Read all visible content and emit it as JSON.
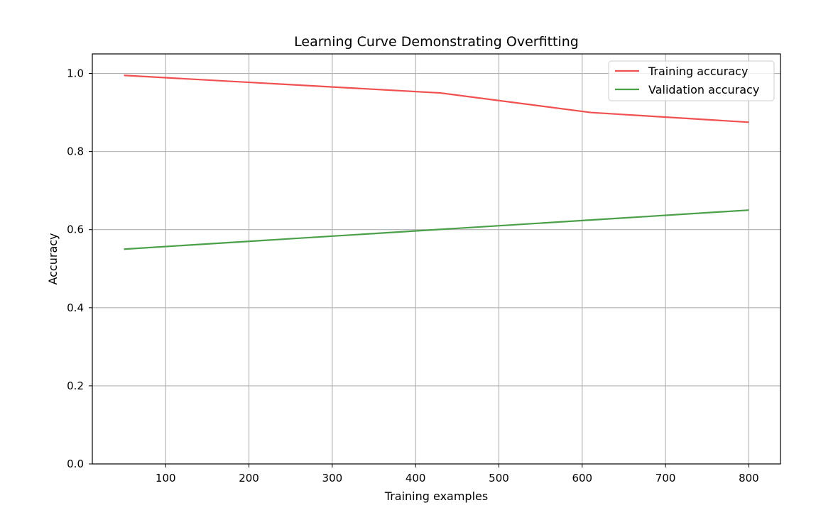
{
  "chart_data": {
    "type": "line",
    "title": "Learning Curve Demonstrating Overfitting",
    "xlabel": "Training examples",
    "ylabel": "Accuracy",
    "xlim": [
      12,
      838
    ],
    "ylim": [
      0.0,
      1.05
    ],
    "xticks": [
      100,
      200,
      300,
      400,
      500,
      600,
      700,
      800
    ],
    "xtick_labels": [
      "100",
      "200",
      "300",
      "400",
      "500",
      "600",
      "700",
      "800"
    ],
    "yticks": [
      0.0,
      0.2,
      0.4,
      0.6,
      0.8,
      1.0
    ],
    "ytick_labels": [
      "0.0",
      "0.2",
      "0.4",
      "0.6",
      "0.8",
      "1.0"
    ],
    "grid": true,
    "legend_position": "upper right",
    "series": [
      {
        "name": "Training accuracy",
        "color": "#f0504f",
        "x": [
          50,
          430,
          610,
          800
        ],
        "y": [
          0.995,
          0.95,
          0.9,
          0.875
        ]
      },
      {
        "name": "Validation accuracy",
        "color": "#4a9f47",
        "x": [
          50,
          800
        ],
        "y": [
          0.55,
          0.65
        ]
      }
    ]
  }
}
